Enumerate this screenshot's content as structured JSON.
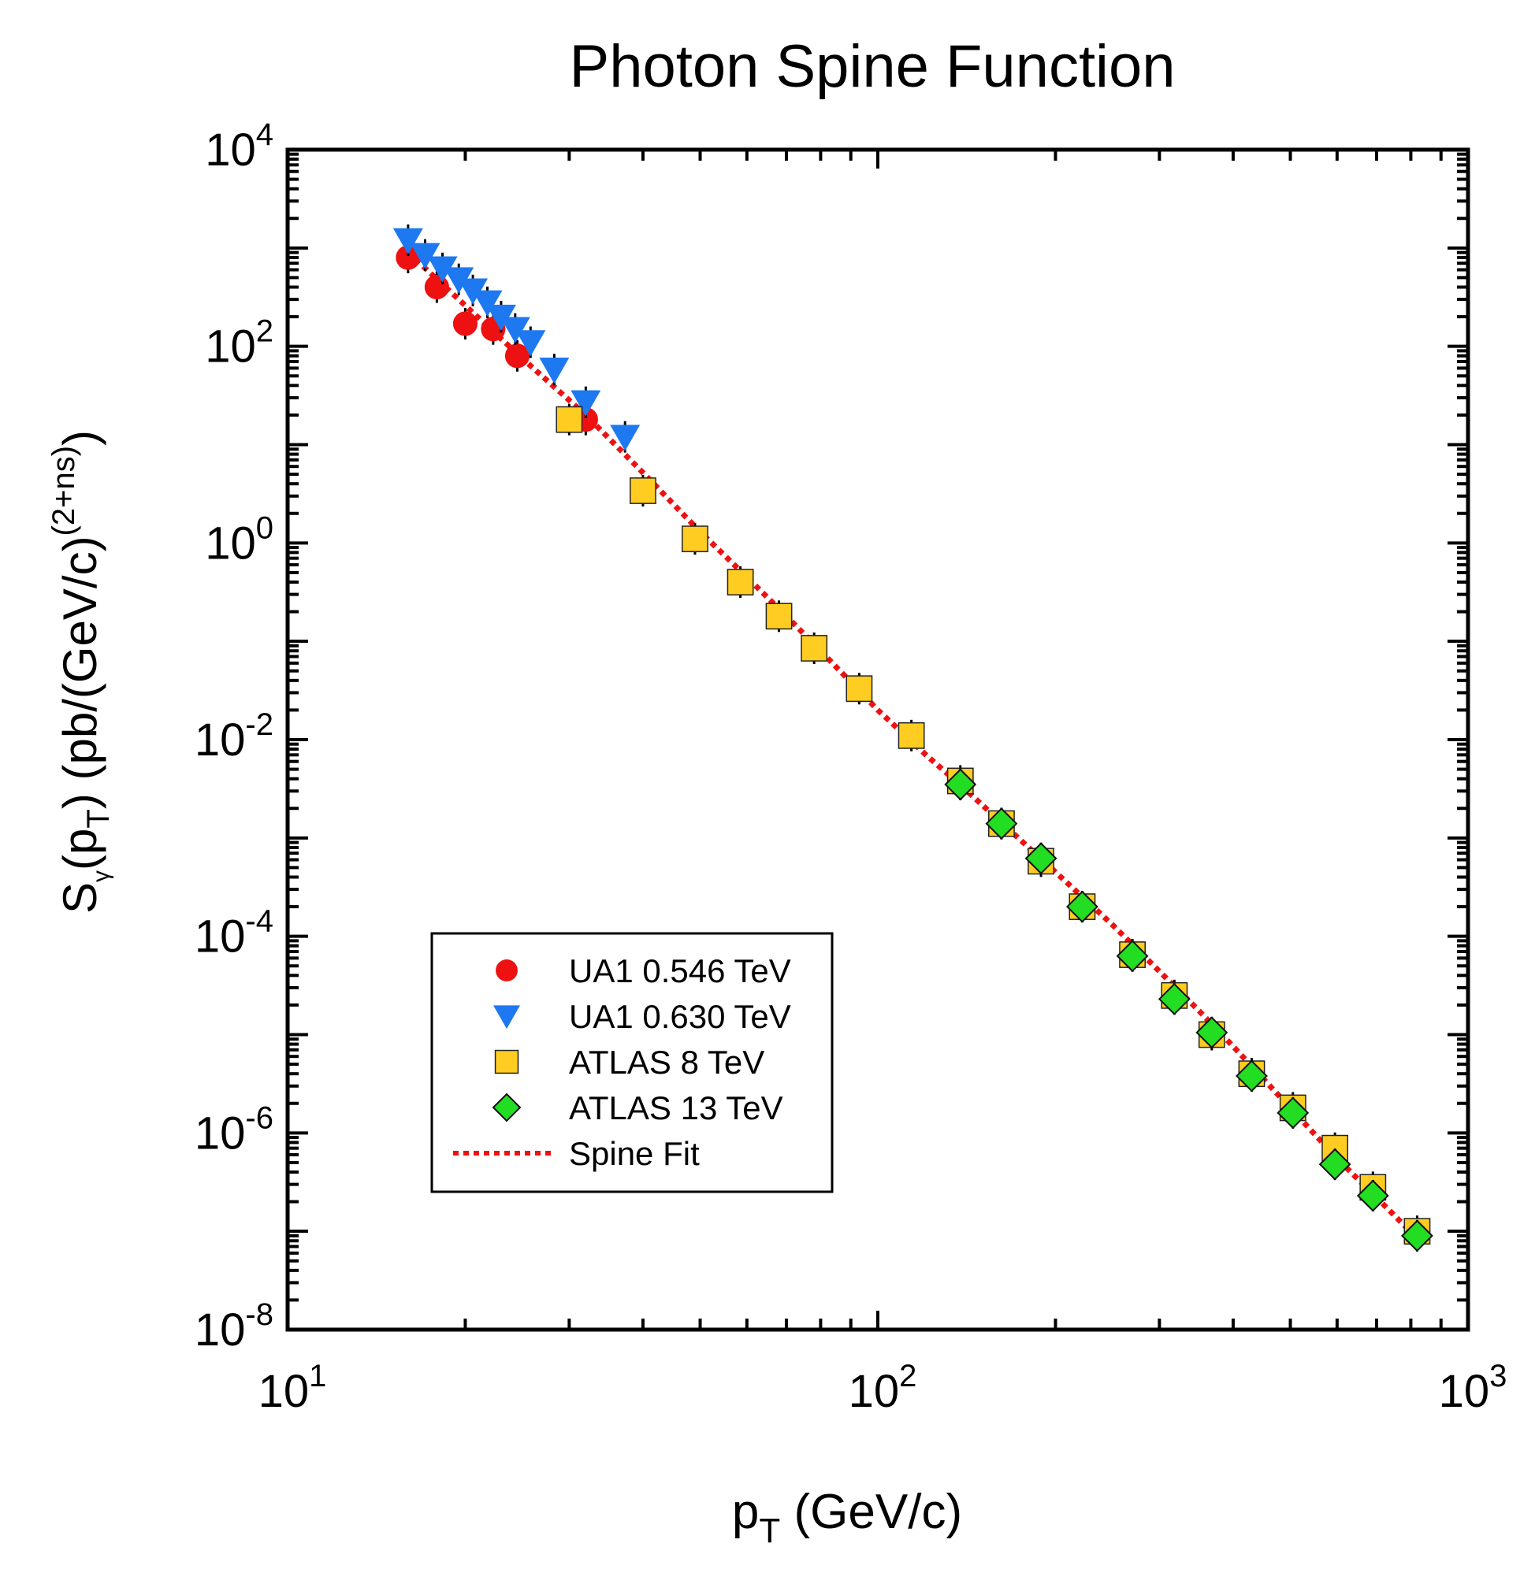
{
  "chart_data": {
    "type": "scatter",
    "title": "Photon Spine Function",
    "xlabel": {
      "main": "p",
      "sub": "T",
      "rest": " (GeV/c)"
    },
    "ylabel": {
      "s": "S",
      "s_sub": "γ",
      "p_open": "(p",
      "p_sub": "T",
      "rest": ") (pb/(GeV/c)",
      "sup": "(2+ns)",
      "close": ")"
    },
    "xscale": "log",
    "yscale": "log",
    "xlim": [
      10,
      1000
    ],
    "ylim": [
      1e-08,
      10000
    ],
    "x_ticks": [
      {
        "value": 10,
        "base": "10",
        "exp": "1"
      },
      {
        "value": 100,
        "base": "10",
        "exp": "2"
      },
      {
        "value": 1000,
        "base": "10",
        "exp": "3"
      }
    ],
    "y_ticks": [
      {
        "value": 1e-08,
        "base": "10",
        "exp": "-8"
      },
      {
        "value": 1e-06,
        "base": "10",
        "exp": "-6"
      },
      {
        "value": 0.0001,
        "base": "10",
        "exp": "-4"
      },
      {
        "value": 0.01,
        "base": "10",
        "exp": "-2"
      },
      {
        "value": 1,
        "base": "10",
        "exp": "0"
      },
      {
        "value": 100,
        "base": "10",
        "exp": "2"
      },
      {
        "value": 10000,
        "base": "10",
        "exp": "4"
      }
    ],
    "legend_position": "lower-left",
    "series": [
      {
        "name": "UA1 0.546 TeV",
        "marker": "circle",
        "color": "#ee1111",
        "x": [
          16.0,
          17.9,
          20.0,
          22.3,
          24.5,
          32.0
        ],
        "y": [
          800,
          400,
          170,
          150,
          80,
          18
        ]
      },
      {
        "name": "UA1 0.630 TeV",
        "marker": "triangle-down",
        "color": "#1e78f0",
        "x": [
          16.0,
          17.1,
          18.3,
          19.5,
          20.6,
          21.8,
          23.0,
          24.3,
          25.8,
          28.3,
          32.0,
          37.3
        ],
        "y": [
          1200,
          850,
          620,
          480,
          370,
          280,
          200,
          150,
          110,
          58,
          27,
          12
        ]
      },
      {
        "name": "ATLAS 8 TeV",
        "marker": "square",
        "color": "#ffcc22",
        "x": [
          30.0,
          40.0,
          49.0,
          58.5,
          68.0,
          78.0,
          93.0,
          114.0,
          138.0,
          162.0,
          189.0,
          222.0,
          270.0,
          318.0,
          368.0,
          430.0,
          505.0,
          595.0,
          690.0,
          820.0
        ],
        "y": [
          18,
          3.4,
          1.1,
          0.4,
          0.18,
          0.085,
          0.033,
          0.011,
          0.0038,
          0.0014,
          0.00058,
          0.0002,
          6.5e-05,
          2.5e-05,
          1e-05,
          4e-06,
          1.8e-06,
          7e-07,
          2.8e-07,
          1e-07
        ]
      },
      {
        "name": "ATLAS 13 TeV",
        "marker": "diamond",
        "color": "#22dd22",
        "x": [
          138.0,
          162.0,
          189.0,
          222.0,
          270.0,
          318.0,
          368.0,
          430.0,
          505.0,
          595.0,
          690.0,
          820.0
        ],
        "y": [
          0.0035,
          0.0014,
          0.00062,
          0.0002,
          6.3e-05,
          2.3e-05,
          1.05e-05,
          3.8e-06,
          1.6e-06,
          4.8e-07,
          2.3e-07,
          9e-08
        ]
      },
      {
        "name": "Spine Fit",
        "marker": "dotted-line",
        "color": "#ee1111",
        "x": [
          16.0,
          20.0,
          25.0,
          32.0,
          40.0,
          50.0,
          60.0,
          70.0,
          80.0,
          100.0,
          120.0,
          140.0,
          170.0,
          200.0,
          250.0,
          300.0,
          350.0,
          400.0,
          500.0,
          600.0,
          700.0,
          820.0
        ],
        "y": [
          900,
          260,
          75,
          20,
          5.2,
          1.3,
          0.45,
          0.18,
          0.08,
          0.02,
          0.0072,
          0.0032,
          0.0011,
          0.00045,
          0.00013,
          4.4e-05,
          1.75e-05,
          7.6e-06,
          1.8e-06,
          5.5e-07,
          2.2e-07,
          8.5e-08
        ]
      }
    ]
  }
}
